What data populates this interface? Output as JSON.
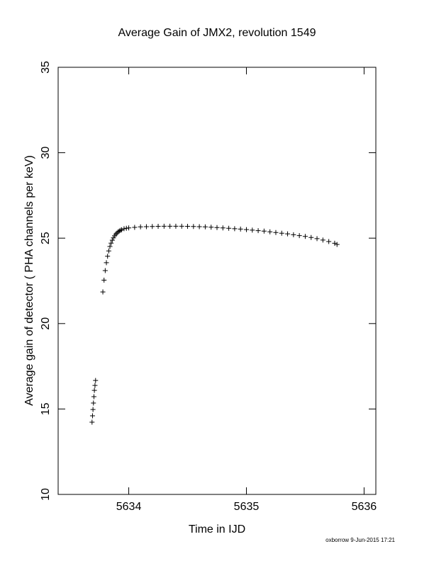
{
  "chart_data": {
    "type": "scatter",
    "title": "Average Gain of JMX2, revolution 1549",
    "x_label": "Time in IJD",
    "y_label": "Average gain of detector ( PHA channels per keV)",
    "footer": "oxborrow  9-Jun-2015 17:21",
    "marker": "plus",
    "color": "#000000",
    "xlim": [
      5633.4,
      5636.1
    ],
    "xticks": [
      5634,
      5635,
      5636
    ],
    "ylim": [
      10,
      35
    ],
    "yticks": [
      10,
      15,
      20,
      25,
      30,
      35
    ],
    "x": [
      5633.688,
      5633.692,
      5633.696,
      5633.7,
      5633.704,
      5633.708,
      5633.713,
      5633.718,
      5633.78,
      5633.79,
      5633.8,
      5633.81,
      5633.82,
      5633.83,
      5633.84,
      5633.85,
      5633.86,
      5633.87,
      5633.88,
      5633.89,
      5633.9,
      5633.91,
      5633.92,
      5633.93,
      5633.94,
      5633.96,
      5633.98,
      5634.0,
      5634.05,
      5634.1,
      5634.15,
      5634.2,
      5634.25,
      5634.3,
      5634.35,
      5634.4,
      5634.45,
      5634.5,
      5634.55,
      5634.6,
      5634.65,
      5634.7,
      5634.75,
      5634.8,
      5634.85,
      5634.9,
      5634.95,
      5635.0,
      5635.05,
      5635.1,
      5635.15,
      5635.2,
      5635.25,
      5635.3,
      5635.35,
      5635.4,
      5635.45,
      5635.5,
      5635.55,
      5635.6,
      5635.65,
      5635.7,
      5635.75,
      5635.77
    ],
    "values": [
      14.23,
      14.6,
      14.97,
      15.35,
      15.72,
      16.09,
      16.38,
      16.67,
      21.85,
      22.54,
      23.1,
      23.56,
      23.94,
      24.25,
      24.51,
      24.71,
      24.88,
      25.02,
      25.14,
      25.23,
      25.3,
      25.37,
      25.42,
      25.46,
      25.49,
      25.55,
      25.58,
      25.6,
      25.63,
      25.66,
      25.67,
      25.68,
      25.69,
      25.7,
      25.7,
      25.7,
      25.7,
      25.69,
      25.68,
      25.67,
      25.66,
      25.64,
      25.62,
      25.6,
      25.58,
      25.55,
      25.53,
      25.5,
      25.47,
      25.44,
      25.41,
      25.37,
      25.33,
      25.29,
      25.25,
      25.2,
      25.15,
      25.1,
      25.04,
      24.97,
      24.89,
      24.8,
      24.7,
      24.63
    ]
  }
}
